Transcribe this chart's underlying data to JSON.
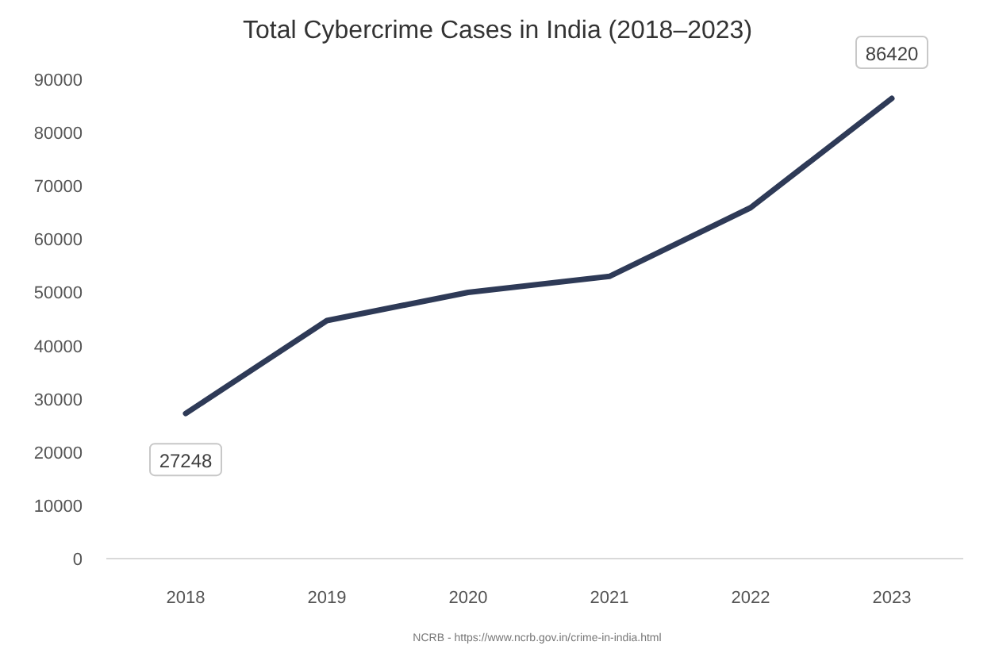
{
  "chart_data": {
    "type": "line",
    "title": "Total Cybercrime Cases in India (2018–2023)",
    "categories": [
      "2018",
      "2019",
      "2020",
      "2021",
      "2022",
      "2023"
    ],
    "values": [
      27248,
      44700,
      50000,
      53000,
      65900,
      86420
    ],
    "value_labels": [
      "27248",
      null,
      null,
      null,
      null,
      "86420"
    ],
    "color": "#2e3a57",
    "ylim": [
      0,
      90000
    ],
    "yticks": [
      0,
      10000,
      20000,
      30000,
      40000,
      50000,
      60000,
      70000,
      80000,
      90000
    ],
    "grid": false,
    "marker": "none",
    "line_style": "solid",
    "annotations": [
      "NCRB - https://www.ncrb.gov.in/crime-in-india.html"
    ]
  }
}
